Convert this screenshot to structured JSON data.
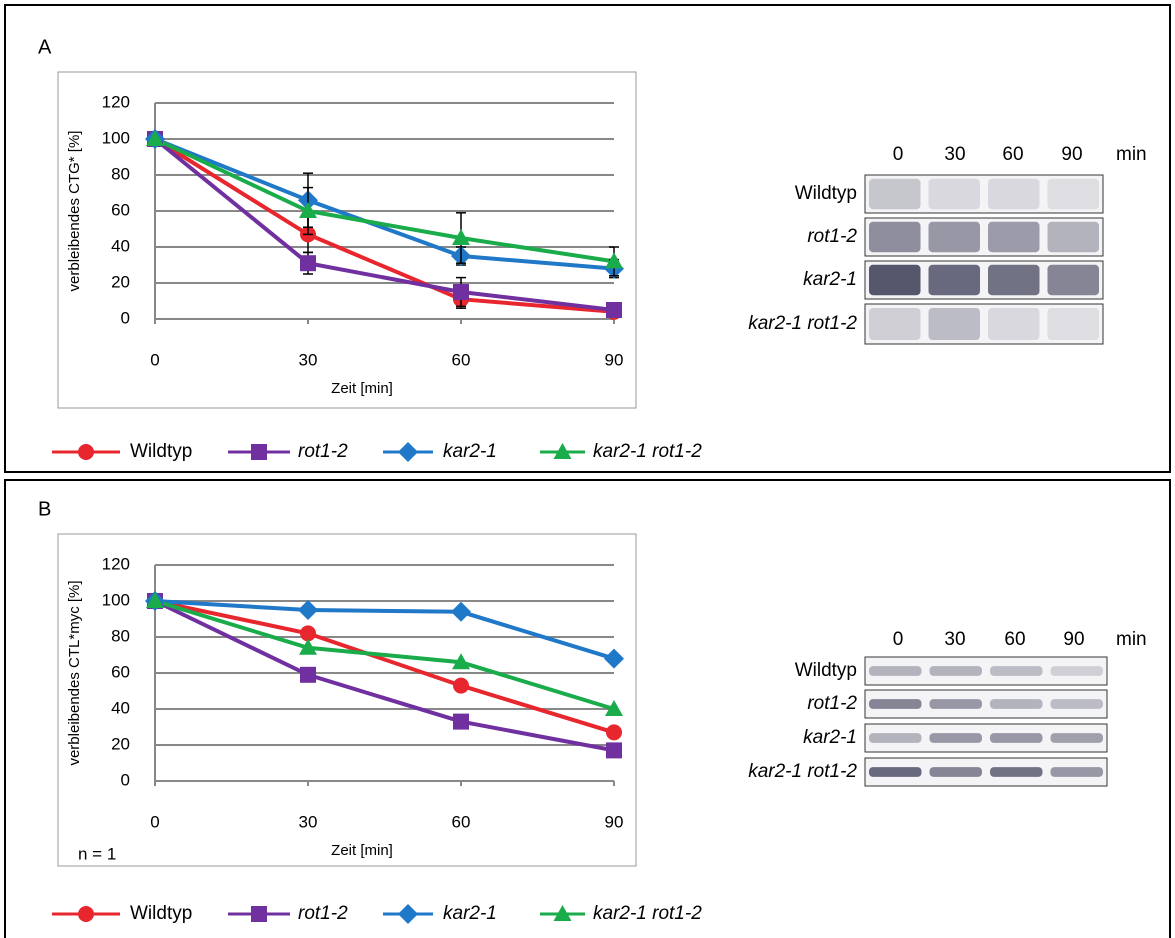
{
  "chart_data": [
    {
      "type": "line",
      "label": "A",
      "ylabel": "verbleibendes CTG* [%]",
      "xlabel": "Zeit [min]",
      "x": [
        0,
        30,
        60,
        90
      ],
      "xlim": [
        0,
        90
      ],
      "xticks": [
        0,
        30,
        60,
        90
      ],
      "ylim": [
        0,
        120
      ],
      "yticks": [
        0,
        20,
        40,
        60,
        80,
        100,
        120
      ],
      "grid": true,
      "series": [
        {
          "name": "Wildtyp",
          "color": "#e8262d",
          "marker": "circle",
          "italic": false,
          "values": [
            100,
            47,
            11,
            4
          ],
          "errors": [
            0,
            10,
            5,
            2
          ]
        },
        {
          "name": "rot1-2",
          "color": "#7030a0",
          "marker": "square",
          "italic": true,
          "values": [
            100,
            31,
            15,
            5
          ],
          "errors": [
            0,
            6,
            8,
            2
          ]
        },
        {
          "name": "kar2-1",
          "color": "#1f78c8",
          "marker": "diamond",
          "italic": true,
          "values": [
            100,
            66,
            35,
            28
          ],
          "errors": [
            0,
            15,
            5,
            5
          ]
        },
        {
          "name": "kar2-1 rot1-2",
          "color": "#1aab4b",
          "marker": "triangle",
          "italic": true,
          "values": [
            100,
            60,
            45,
            32
          ],
          "errors": [
            0,
            13,
            14,
            8
          ]
        }
      ]
    },
    {
      "type": "line",
      "label": "B",
      "ylabel": "verbleibendes CTL*myc [%]",
      "xlabel": "Zeit [min]",
      "annotation": "n = 1",
      "x": [
        0,
        30,
        60,
        90
      ],
      "xlim": [
        0,
        90
      ],
      "xticks": [
        0,
        30,
        60,
        90
      ],
      "ylim": [
        0,
        120
      ],
      "yticks": [
        0,
        20,
        40,
        60,
        80,
        100,
        120
      ],
      "grid": true,
      "series": [
        {
          "name": "Wildtyp",
          "color": "#e8262d",
          "marker": "circle",
          "italic": false,
          "values": [
            100,
            82,
            53,
            27
          ]
        },
        {
          "name": "rot1-2",
          "color": "#7030a0",
          "marker": "square",
          "italic": true,
          "values": [
            100,
            59,
            33,
            17
          ]
        },
        {
          "name": "kar2-1",
          "color": "#1f78c8",
          "marker": "diamond",
          "italic": true,
          "values": [
            100,
            95,
            94,
            68
          ]
        },
        {
          "name": "kar2-1 rot1-2",
          "color": "#1aab4b",
          "marker": "triangle",
          "italic": true,
          "values": [
            100,
            74,
            66,
            40
          ]
        }
      ]
    }
  ],
  "blots": [
    {
      "lanes": [
        "0",
        "30",
        "60",
        "90"
      ],
      "unit": "min",
      "rows": [
        "Wildtyp",
        "rot1-2",
        "kar2-1",
        "kar2-1 rot1-2"
      ]
    },
    {
      "lanes": [
        "0",
        "30",
        "60",
        "90"
      ],
      "unit": "min",
      "rows": [
        "Wildtyp",
        "rot1-2",
        "kar2-1",
        "kar2-1 rot1-2"
      ]
    }
  ]
}
